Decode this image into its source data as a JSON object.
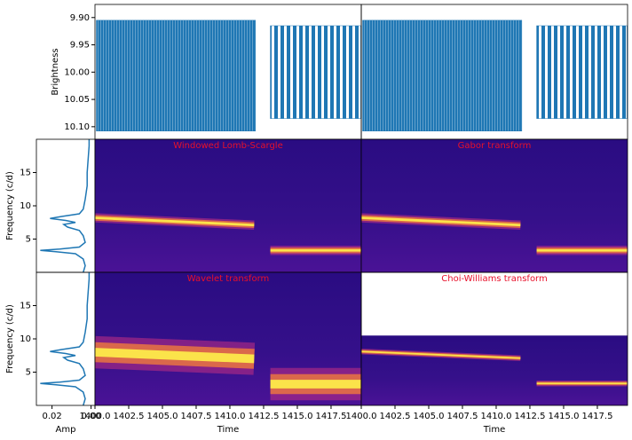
{
  "chart_data": [
    {
      "type": "lightcurve",
      "ylabel": "Brightness",
      "xlim": [
        1400,
        1419.74
      ],
      "ylim": [
        10.123,
        9.876
      ],
      "yticks": [
        {
          "value": 9.9,
          "label": "9.90"
        },
        9.95,
        {
          "value": 10,
          "label": "10.00"
        },
        10.05,
        {
          "value": 10.1,
          "label": "10.10"
        }
      ],
      "color": "#1f77b4",
      "segments": [
        {
          "start": 1400.1,
          "end": 1411.9,
          "min": 9.905,
          "max": 10.108
        },
        {
          "start": 1413.0,
          "end": 1419.7,
          "min": 9.915,
          "max": 10.085
        }
      ]
    },
    {
      "type": "lightcurve",
      "xlim": [
        1400,
        1419.74
      ],
      "ylim": [
        10.123,
        9.876
      ],
      "color": "#1f77b4",
      "segments": [
        {
          "start": 1400.1,
          "end": 1411.9,
          "min": 9.905,
          "max": 10.108
        },
        {
          "start": 1413.0,
          "end": 1419.7,
          "min": 9.915,
          "max": 10.085
        }
      ]
    },
    {
      "type": "amplitude",
      "ylabel": "Frequency (c/d)",
      "xlim": [
        0.028,
        -0.002
      ],
      "ylim": [
        0,
        20
      ],
      "yticks": [
        5,
        10,
        15
      ],
      "color": "#1f77b4",
      "freq": [
        0,
        1,
        2,
        2.8,
        3.1,
        3.3,
        3.5,
        3.8,
        4.5,
        5.5,
        6.3,
        6.8,
        7.2,
        7.5,
        7.8,
        8.1,
        8.4,
        8.8,
        9.5,
        11,
        13,
        15,
        17,
        19,
        20
      ],
      "amp": [
        0.004,
        0.003,
        0.004,
        0.008,
        0.018,
        0.026,
        0.016,
        0.006,
        0.003,
        0.004,
        0.006,
        0.012,
        0.014,
        0.008,
        0.013,
        0.021,
        0.015,
        0.006,
        0.004,
        0.003,
        0.002,
        0.002,
        0.0015,
        0.001,
        0.001
      ]
    },
    {
      "type": "spectrogram",
      "title": "Windowed Lomb-Scargle",
      "xlim": [
        1400,
        1419.74
      ],
      "ylim": [
        0,
        20
      ],
      "ridges": [
        {
          "x": [
            1400,
            1411.8
          ],
          "y": [
            8.2,
            7.1
          ]
        },
        {
          "x": [
            1413,
            1419.7
          ],
          "y": [
            3.3,
            3.3
          ]
        }
      ]
    },
    {
      "type": "spectrogram",
      "title": "Gabor transform",
      "xlim": [
        1400,
        1419.74
      ],
      "ylim": [
        0,
        20
      ],
      "ridges": [
        {
          "x": [
            1400,
            1411.8
          ],
          "y": [
            8.2,
            7.1
          ]
        },
        {
          "x": [
            1413,
            1419.7
          ],
          "y": [
            3.3,
            3.3
          ]
        }
      ]
    },
    {
      "type": "amplitude",
      "ylabel": "Frequency (c/d)",
      "xlabel": "Amp",
      "xlim": [
        0.028,
        -0.002
      ],
      "ylim": [
        0,
        20
      ],
      "yticks": [
        5,
        10,
        15
      ],
      "xticks": [
        0.02,
        {
          "value": 0,
          "label": "0.00"
        }
      ],
      "color": "#1f77b4",
      "freq": [
        0,
        1,
        2,
        2.8,
        3.1,
        3.3,
        3.5,
        3.8,
        4.5,
        5.5,
        6.3,
        6.8,
        7.2,
        7.5,
        7.8,
        8.1,
        8.4,
        8.8,
        9.5,
        11,
        13,
        15,
        17,
        19,
        20
      ],
      "amp": [
        0.004,
        0.003,
        0.004,
        0.008,
        0.018,
        0.026,
        0.016,
        0.006,
        0.003,
        0.004,
        0.006,
        0.012,
        0.014,
        0.008,
        0.013,
        0.021,
        0.015,
        0.006,
        0.004,
        0.003,
        0.002,
        0.002,
        0.0015,
        0.001,
        0.001
      ]
    },
    {
      "type": "spectrogram",
      "title": "Wavelet transform",
      "xlabel": "Time",
      "xlim": [
        1400,
        1419.74
      ],
      "ylim": [
        0,
        20
      ],
      "xticks": [
        {
          "value": 1400,
          "label": "1400.0"
        },
        1402.5,
        {
          "value": 1405,
          "label": "1405.0"
        },
        1407.5,
        {
          "value": 1410,
          "label": "1410.0"
        },
        1412.5,
        {
          "value": 1415,
          "label": "1415.0"
        },
        1417.5
      ],
      "ridges": [
        {
          "x": [
            1400,
            1411.8
          ],
          "y": [
            8.0,
            7.0
          ]
        },
        {
          "x": [
            1413,
            1419.7
          ],
          "y": [
            3.2,
            3.2
          ]
        }
      ]
    },
    {
      "type": "spectrogram",
      "title": "Choi-Williams transform",
      "xlabel": "Time",
      "xlim": [
        1400,
        1419.74
      ],
      "ylim": [
        0,
        20
      ],
      "fmax": 10.5,
      "xticks": [
        {
          "value": 1400,
          "label": "1400.0"
        },
        1402.5,
        {
          "value": 1405,
          "label": "1405.0"
        },
        1407.5,
        {
          "value": 1410,
          "label": "1410.0"
        },
        1412.5,
        {
          "value": 1415,
          "label": "1415.0"
        },
        1417.5
      ],
      "ridges": [
        {
          "x": [
            1400,
            1411.8
          ],
          "y": [
            8.1,
            7.1
          ]
        },
        {
          "x": [
            1413,
            1419.7
          ],
          "y": [
            3.3,
            3.3
          ]
        }
      ]
    }
  ]
}
